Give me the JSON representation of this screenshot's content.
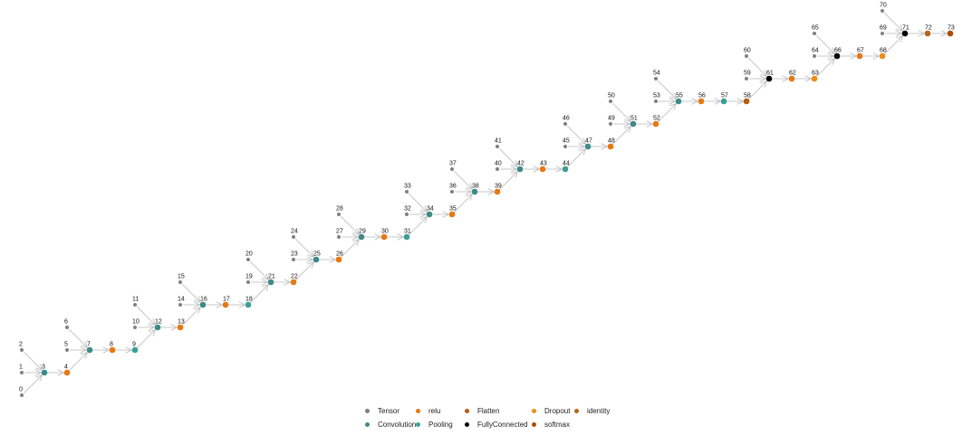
{
  "graph": {
    "nodes": [
      {
        "id": "0",
        "type": "Tensor"
      },
      {
        "id": "1",
        "type": "Tensor"
      },
      {
        "id": "2",
        "type": "Tensor"
      },
      {
        "id": "3",
        "type": "Convolution"
      },
      {
        "id": "4",
        "type": "relu"
      },
      {
        "id": "5",
        "type": "Tensor"
      },
      {
        "id": "6",
        "type": "Tensor"
      },
      {
        "id": "7",
        "type": "Convolution"
      },
      {
        "id": "8",
        "type": "relu"
      },
      {
        "id": "9",
        "type": "Pooling"
      },
      {
        "id": "10",
        "type": "Tensor"
      },
      {
        "id": "11",
        "type": "Tensor"
      },
      {
        "id": "12",
        "type": "Convolution"
      },
      {
        "id": "13",
        "type": "relu"
      },
      {
        "id": "14",
        "type": "Tensor"
      },
      {
        "id": "15",
        "type": "Tensor"
      },
      {
        "id": "16",
        "type": "Convolution"
      },
      {
        "id": "17",
        "type": "relu"
      },
      {
        "id": "18",
        "type": "Pooling"
      },
      {
        "id": "19",
        "type": "Tensor"
      },
      {
        "id": "20",
        "type": "Tensor"
      },
      {
        "id": "21",
        "type": "Convolution"
      },
      {
        "id": "22",
        "type": "relu"
      },
      {
        "id": "23",
        "type": "Tensor"
      },
      {
        "id": "24",
        "type": "Tensor"
      },
      {
        "id": "25",
        "type": "Convolution"
      },
      {
        "id": "26",
        "type": "relu"
      },
      {
        "id": "27",
        "type": "Tensor"
      },
      {
        "id": "28",
        "type": "Tensor"
      },
      {
        "id": "29",
        "type": "Convolution"
      },
      {
        "id": "30",
        "type": "relu"
      },
      {
        "id": "31",
        "type": "Pooling"
      },
      {
        "id": "32",
        "type": "Tensor"
      },
      {
        "id": "33",
        "type": "Tensor"
      },
      {
        "id": "34",
        "type": "Convolution"
      },
      {
        "id": "35",
        "type": "relu"
      },
      {
        "id": "36",
        "type": "Tensor"
      },
      {
        "id": "37",
        "type": "Tensor"
      },
      {
        "id": "38",
        "type": "Convolution"
      },
      {
        "id": "39",
        "type": "relu"
      },
      {
        "id": "40",
        "type": "Tensor"
      },
      {
        "id": "41",
        "type": "Tensor"
      },
      {
        "id": "42",
        "type": "Convolution"
      },
      {
        "id": "43",
        "type": "relu"
      },
      {
        "id": "44",
        "type": "Pooling"
      },
      {
        "id": "45",
        "type": "Tensor"
      },
      {
        "id": "46",
        "type": "Tensor"
      },
      {
        "id": "47",
        "type": "Convolution"
      },
      {
        "id": "48",
        "type": "relu"
      },
      {
        "id": "49",
        "type": "Tensor"
      },
      {
        "id": "50",
        "type": "Tensor"
      },
      {
        "id": "51",
        "type": "Convolution"
      },
      {
        "id": "52",
        "type": "relu"
      },
      {
        "id": "53",
        "type": "Tensor"
      },
      {
        "id": "54",
        "type": "Tensor"
      },
      {
        "id": "55",
        "type": "Convolution"
      },
      {
        "id": "56",
        "type": "relu"
      },
      {
        "id": "57",
        "type": "Pooling"
      },
      {
        "id": "58",
        "type": "Flatten"
      },
      {
        "id": "59",
        "type": "Tensor"
      },
      {
        "id": "60",
        "type": "Tensor"
      },
      {
        "id": "61",
        "type": "FullyConnected"
      },
      {
        "id": "62",
        "type": "relu"
      },
      {
        "id": "63",
        "type": "Dropout"
      },
      {
        "id": "64",
        "type": "Tensor"
      },
      {
        "id": "65",
        "type": "Tensor"
      },
      {
        "id": "66",
        "type": "FullyConnected"
      },
      {
        "id": "67",
        "type": "relu"
      },
      {
        "id": "68",
        "type": "Dropout"
      },
      {
        "id": "69",
        "type": "Tensor"
      },
      {
        "id": "70",
        "type": "Tensor"
      },
      {
        "id": "71",
        "type": "FullyConnected"
      },
      {
        "id": "72",
        "type": "identity"
      },
      {
        "id": "73",
        "type": "softmax"
      }
    ],
    "edges": [
      [
        "0",
        "3"
      ],
      [
        "1",
        "3"
      ],
      [
        "2",
        "3"
      ],
      [
        "3",
        "4"
      ],
      [
        "4",
        "7"
      ],
      [
        "5",
        "7"
      ],
      [
        "6",
        "7"
      ],
      [
        "7",
        "8"
      ],
      [
        "8",
        "9"
      ],
      [
        "9",
        "12"
      ],
      [
        "10",
        "12"
      ],
      [
        "11",
        "12"
      ],
      [
        "12",
        "13"
      ],
      [
        "13",
        "16"
      ],
      [
        "14",
        "16"
      ],
      [
        "15",
        "16"
      ],
      [
        "16",
        "17"
      ],
      [
        "17",
        "18"
      ],
      [
        "18",
        "21"
      ],
      [
        "19",
        "21"
      ],
      [
        "20",
        "21"
      ],
      [
        "21",
        "22"
      ],
      [
        "22",
        "25"
      ],
      [
        "23",
        "25"
      ],
      [
        "24",
        "25"
      ],
      [
        "25",
        "26"
      ],
      [
        "26",
        "29"
      ],
      [
        "27",
        "29"
      ],
      [
        "28",
        "29"
      ],
      [
        "29",
        "30"
      ],
      [
        "30",
        "31"
      ],
      [
        "31",
        "34"
      ],
      [
        "32",
        "34"
      ],
      [
        "33",
        "34"
      ],
      [
        "34",
        "35"
      ],
      [
        "35",
        "38"
      ],
      [
        "36",
        "38"
      ],
      [
        "37",
        "38"
      ],
      [
        "38",
        "39"
      ],
      [
        "39",
        "42"
      ],
      [
        "40",
        "42"
      ],
      [
        "41",
        "42"
      ],
      [
        "42",
        "43"
      ],
      [
        "43",
        "44"
      ],
      [
        "44",
        "47"
      ],
      [
        "45",
        "47"
      ],
      [
        "46",
        "47"
      ],
      [
        "47",
        "48"
      ],
      [
        "48",
        "51"
      ],
      [
        "49",
        "51"
      ],
      [
        "50",
        "51"
      ],
      [
        "51",
        "52"
      ],
      [
        "52",
        "55"
      ],
      [
        "53",
        "55"
      ],
      [
        "54",
        "55"
      ],
      [
        "55",
        "56"
      ],
      [
        "56",
        "57"
      ],
      [
        "57",
        "58"
      ],
      [
        "58",
        "61"
      ],
      [
        "59",
        "61"
      ],
      [
        "60",
        "61"
      ],
      [
        "61",
        "62"
      ],
      [
        "62",
        "63"
      ],
      [
        "63",
        "66"
      ],
      [
        "64",
        "66"
      ],
      [
        "65",
        "66"
      ],
      [
        "66",
        "67"
      ],
      [
        "67",
        "68"
      ],
      [
        "68",
        "71"
      ],
      [
        "69",
        "71"
      ],
      [
        "70",
        "71"
      ],
      [
        "71",
        "72"
      ],
      [
        "72",
        "73"
      ]
    ]
  },
  "legend": [
    {
      "type": "Tensor",
      "label": "Tensor",
      "color": "#808080"
    },
    {
      "type": "relu",
      "label": "relu",
      "color": "#e8780f"
    },
    {
      "type": "Flatten",
      "label": "Flatten",
      "color": "#b85a12"
    },
    {
      "type": "Dropout",
      "label": "Dropout",
      "color": "#f08c1c"
    },
    {
      "type": "identity",
      "label": "identity",
      "color": "#b8641a"
    },
    {
      "type": "Convolution",
      "label": "Convolution",
      "color": "#3d8a88"
    },
    {
      "type": "Pooling",
      "label": "Pooling",
      "color": "#3a9f98"
    },
    {
      "type": "FullyConnected",
      "label": "FullyConnected",
      "color": "#000000"
    },
    {
      "type": "softmax",
      "label": "softmax",
      "color": "#b04a0c"
    }
  ]
}
